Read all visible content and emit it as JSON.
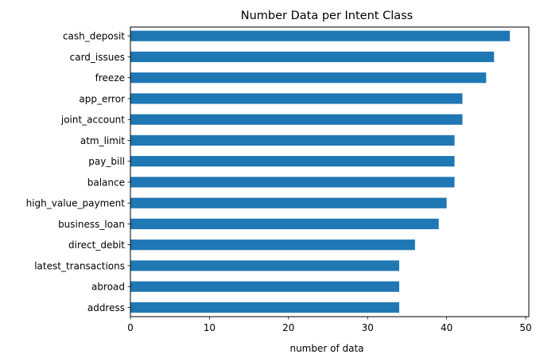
{
  "chart_data": {
    "type": "bar",
    "orientation": "horizontal",
    "title": "Number Data per Intent Class",
    "xlabel": "number of data",
    "ylabel": "",
    "xlim": [
      0,
      50.4
    ],
    "x_ticks": [
      "0",
      "10",
      "20",
      "30",
      "40",
      "50"
    ],
    "categories": [
      "cash_deposit",
      "card_issues",
      "freeze",
      "app_error",
      "joint_account",
      "atm_limit",
      "pay_bill",
      "balance",
      "high_value_payment",
      "business_loan",
      "direct_debit",
      "latest_transactions",
      "abroad",
      "address"
    ],
    "values": [
      48,
      46,
      45,
      42,
      42,
      41,
      41,
      41,
      40,
      39,
      36,
      34,
      34,
      34
    ],
    "bar_color": "#1f77b4",
    "grid": false,
    "legend": "none"
  }
}
